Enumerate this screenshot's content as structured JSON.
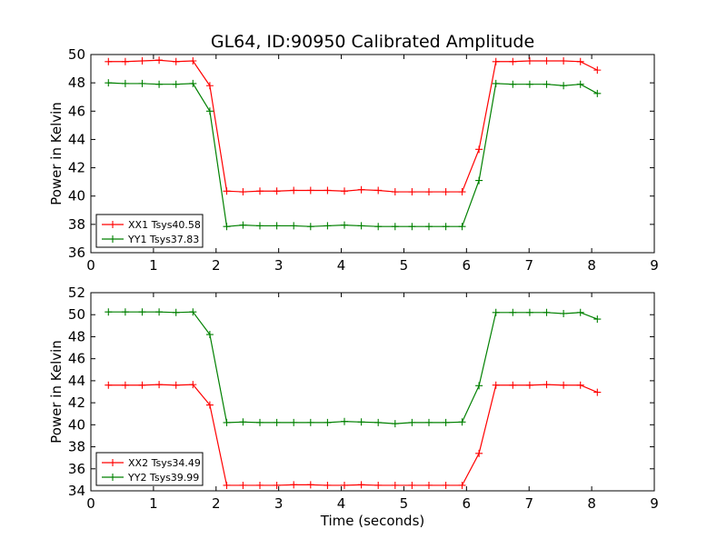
{
  "figure": {
    "title": "GL64, ID:90950 Calibrated Amplitude"
  },
  "chart_data": [
    {
      "type": "line",
      "title": "GL64, ID:90950 Calibrated Amplitude",
      "xlabel": "",
      "ylabel": "Power in Kelvin",
      "xlim": [
        0,
        9
      ],
      "ylim": [
        36,
        50
      ],
      "xticks": [
        0,
        1,
        2,
        3,
        4,
        5,
        6,
        7,
        8,
        9
      ],
      "yticks": [
        36,
        38,
        40,
        42,
        44,
        46,
        48,
        50
      ],
      "grid": false,
      "legend_position": "lower-left",
      "marker": "+",
      "x": [
        0.28,
        0.55,
        0.82,
        1.09,
        1.36,
        1.63,
        1.9,
        2.17,
        2.43,
        2.7,
        2.97,
        3.24,
        3.51,
        3.78,
        4.05,
        4.32,
        4.59,
        4.86,
        5.13,
        5.4,
        5.67,
        5.93,
        6.2,
        6.47,
        6.74,
        7.01,
        7.28,
        7.55,
        7.82,
        8.09
      ],
      "series": [
        {
          "name": "XX1 Tsys40.58",
          "color": "#ff0000",
          "values": [
            49.5,
            49.5,
            49.55,
            49.6,
            49.5,
            49.55,
            47.8,
            40.35,
            40.3,
            40.35,
            40.35,
            40.4,
            40.4,
            40.4,
            40.35,
            40.45,
            40.4,
            40.3,
            40.3,
            40.3,
            40.3,
            40.3,
            43.3,
            49.5,
            49.5,
            49.55,
            49.55,
            49.55,
            49.5,
            48.9
          ]
        },
        {
          "name": "YY1 Tsys37.83",
          "color": "#008000",
          "values": [
            48.0,
            47.95,
            47.95,
            47.9,
            47.9,
            47.95,
            46.0,
            37.85,
            37.95,
            37.9,
            37.9,
            37.9,
            37.85,
            37.9,
            37.95,
            37.9,
            37.85,
            37.85,
            37.85,
            37.85,
            37.85,
            37.85,
            41.1,
            47.95,
            47.9,
            47.9,
            47.9,
            47.8,
            47.9,
            47.25
          ]
        }
      ]
    },
    {
      "type": "line",
      "title": "",
      "xlabel": "Time (seconds)",
      "ylabel": "Power in Kelvin",
      "xlim": [
        0,
        9
      ],
      "ylim": [
        34,
        52
      ],
      "xticks": [
        0,
        1,
        2,
        3,
        4,
        5,
        6,
        7,
        8,
        9
      ],
      "yticks": [
        34,
        36,
        38,
        40,
        42,
        44,
        46,
        48,
        50,
        52
      ],
      "grid": false,
      "legend_position": "lower-left",
      "marker": "+",
      "x": [
        0.28,
        0.55,
        0.82,
        1.09,
        1.36,
        1.63,
        1.9,
        2.17,
        2.43,
        2.7,
        2.97,
        3.24,
        3.51,
        3.78,
        4.05,
        4.32,
        4.59,
        4.86,
        5.13,
        5.4,
        5.67,
        5.93,
        6.2,
        6.47,
        6.74,
        7.01,
        7.28,
        7.55,
        7.82,
        8.09
      ],
      "series": [
        {
          "name": "XX2 Tsys34.49",
          "color": "#ff0000",
          "values": [
            43.6,
            43.6,
            43.6,
            43.65,
            43.6,
            43.65,
            41.8,
            34.5,
            34.5,
            34.5,
            34.5,
            34.55,
            34.55,
            34.5,
            34.5,
            34.55,
            34.5,
            34.5,
            34.5,
            34.5,
            34.5,
            34.5,
            37.4,
            43.6,
            43.6,
            43.6,
            43.65,
            43.6,
            43.6,
            42.95
          ]
        },
        {
          "name": "YY2 Tsys39.99",
          "color": "#008000",
          "values": [
            50.25,
            50.25,
            50.25,
            50.25,
            50.2,
            50.25,
            48.2,
            40.2,
            40.25,
            40.2,
            40.2,
            40.2,
            40.2,
            40.2,
            40.3,
            40.25,
            40.2,
            40.1,
            40.2,
            40.2,
            40.2,
            40.25,
            43.55,
            50.2,
            50.2,
            50.2,
            50.2,
            50.1,
            50.2,
            49.6
          ]
        }
      ]
    }
  ]
}
